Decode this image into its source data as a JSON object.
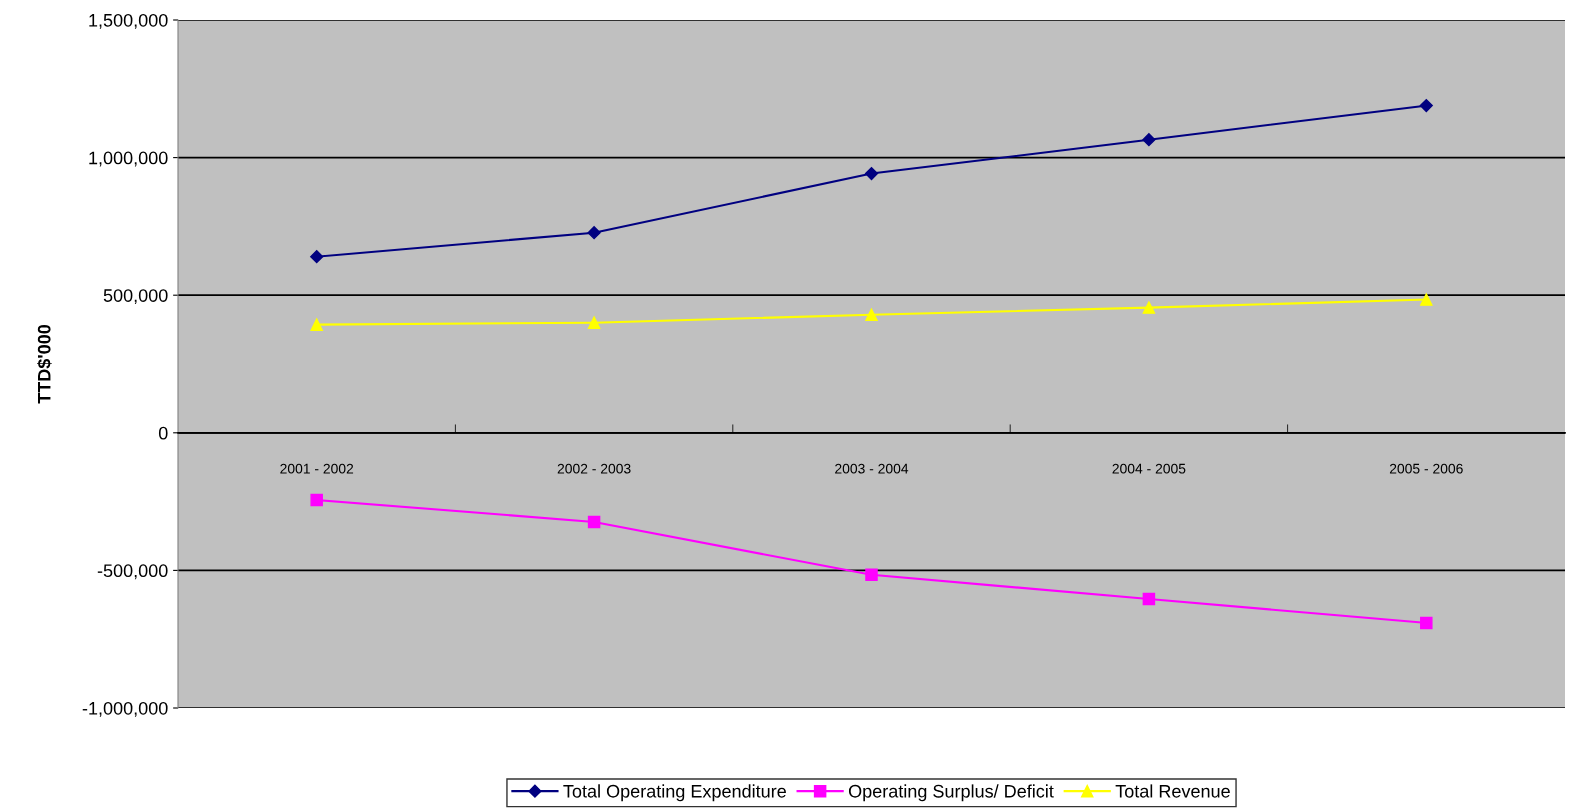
{
  "chart_data": {
    "type": "line",
    "ylabel": "TTD$'000",
    "categories": [
      "2001 - 2002",
      "2002 - 2003",
      "2003 - 2004",
      "2004 - 2005",
      "2005 - 2006"
    ],
    "series": [
      {
        "name": "Total Operating Expenditure",
        "color": "#000080",
        "marker": "diamond",
        "values": [
          640000,
          727000,
          942000,
          1065000,
          1189000
        ]
      },
      {
        "name": "Operating Surplus/ Deficit",
        "color": "#ff00ff",
        "marker": "square",
        "values": [
          -244000,
          -324000,
          -516000,
          -604000,
          -691000
        ]
      },
      {
        "name": "Total Revenue",
        "color": "#ffff00",
        "marker": "triangle",
        "values": [
          393000,
          400000,
          429000,
          455000,
          484000
        ]
      }
    ],
    "ylim": [
      -1000000,
      1500000
    ],
    "yticks": [
      {
        "value": -1000000,
        "label": "-1,000,000"
      },
      {
        "value": -500000,
        "label": "-500,000"
      },
      0,
      {
        "value": 500000,
        "label": "500,000"
      },
      {
        "value": 1000000,
        "label": "1,000,000"
      },
      {
        "value": 1500000,
        "label": "1,500,000"
      }
    ],
    "grid": "y",
    "legend": "bottom"
  }
}
